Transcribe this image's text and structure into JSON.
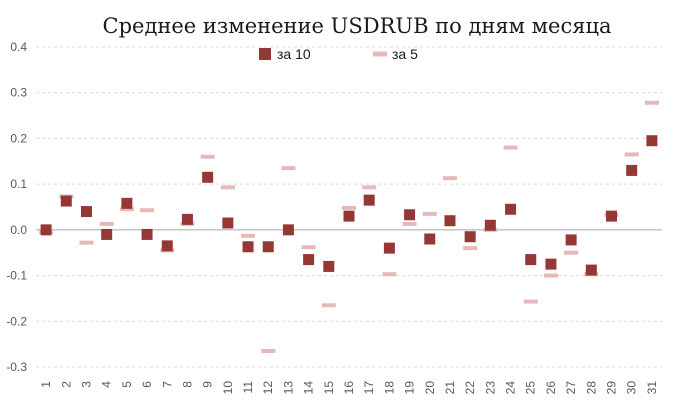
{
  "chart_data": {
    "type": "scatter",
    "title": "Среднее изменение USDRUB по дням месяца",
    "xlabel": "",
    "ylabel": "",
    "categories": [
      "1",
      "2",
      "3",
      "4",
      "5",
      "6",
      "7",
      "8",
      "9",
      "10",
      "11",
      "12",
      "13",
      "14",
      "15",
      "16",
      "17",
      "18",
      "19",
      "20",
      "21",
      "22",
      "23",
      "24",
      "25",
      "26",
      "27",
      "28",
      "29",
      "30",
      "31"
    ],
    "ylim": [
      -0.3,
      0.4
    ],
    "y_ticks": [
      "-0.3",
      "-0.2",
      "-0.1",
      "0.0",
      "0.1",
      "0.2",
      "0.3",
      "0.4"
    ],
    "grid": "horizontal dashed",
    "legend_position": "top",
    "series": [
      {
        "name": "за 10",
        "marker": "square",
        "color": "#953735",
        "values": [
          0.0,
          0.063,
          0.04,
          -0.01,
          0.058,
          -0.01,
          -0.035,
          0.023,
          0.115,
          0.015,
          -0.037,
          -0.037,
          0.0,
          -0.065,
          -0.08,
          0.03,
          0.065,
          -0.04,
          0.033,
          -0.02,
          0.02,
          -0.015,
          0.01,
          0.045,
          -0.065,
          -0.075,
          -0.022,
          -0.088,
          0.03,
          0.13,
          0.195
        ]
      },
      {
        "name": "за 5",
        "marker": "dash",
        "color": "#e6b9b8",
        "values": [
          -0.005,
          0.073,
          -0.028,
          0.013,
          0.045,
          0.043,
          -0.045,
          0.013,
          0.16,
          0.093,
          -0.013,
          -0.265,
          0.135,
          -0.038,
          -0.165,
          0.048,
          0.093,
          -0.097,
          0.013,
          0.035,
          0.113,
          -0.04,
          0.0,
          0.18,
          -0.157,
          -0.1,
          -0.05,
          -0.097,
          0.033,
          0.165,
          0.278
        ]
      }
    ]
  }
}
